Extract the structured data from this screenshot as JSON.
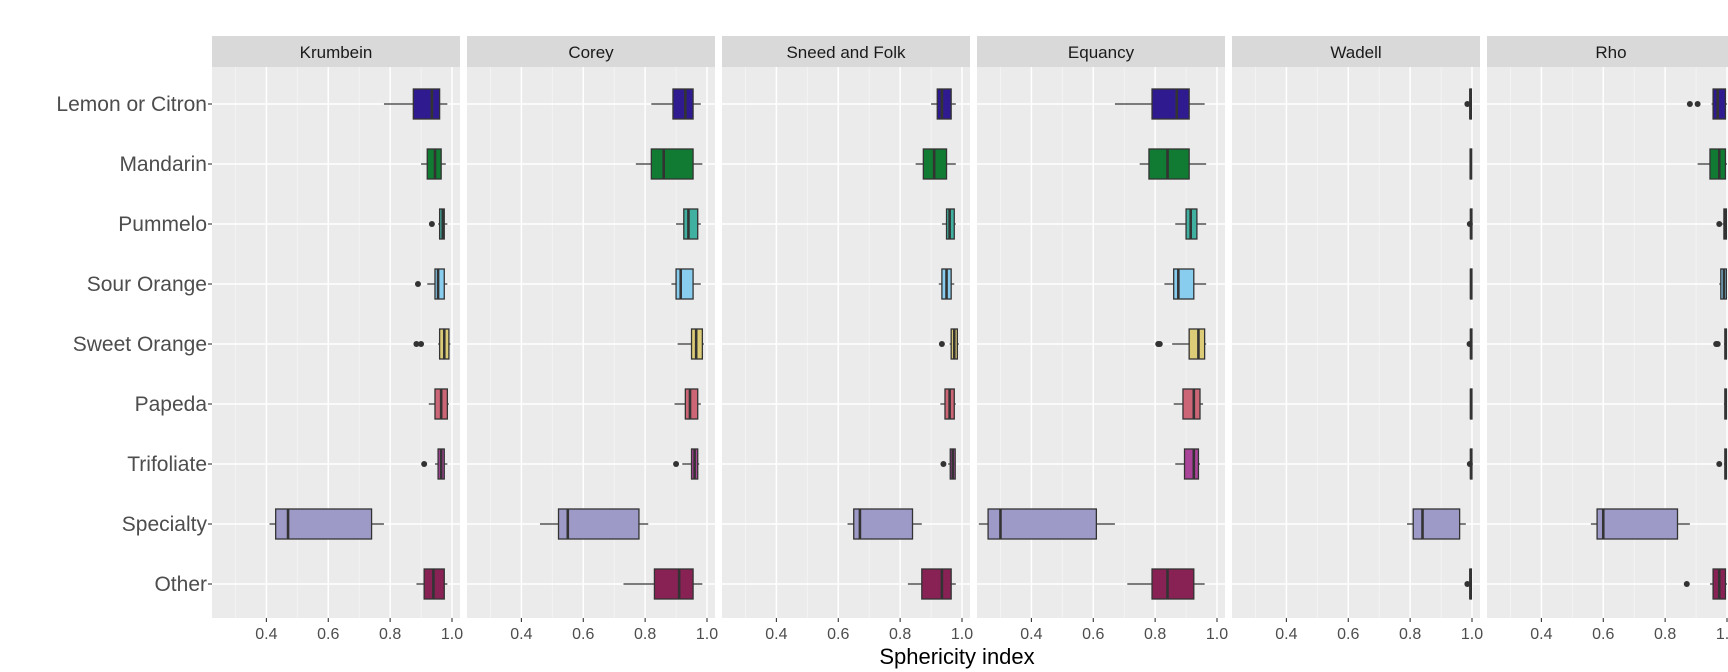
{
  "chart_data": {
    "type": "boxplot",
    "xlabel": "Sphericity index",
    "ylabel": "",
    "xlim": [
      0.25,
      1.0
    ],
    "x_ticks": [
      "0.4",
      "0.6",
      "0.8",
      "1.0"
    ],
    "x_tick_values": [
      0.4,
      0.6,
      0.8,
      1.0
    ],
    "grid": true,
    "legend": "none",
    "categories": [
      "Lemon or Citron",
      "Mandarin",
      "Pummelo",
      "Sour Orange",
      "Sweet Orange",
      "Papeda",
      "Trifoliate",
      "Specialty",
      "Other"
    ],
    "colors": {
      "Lemon or Citron": "#2f1b8f",
      "Mandarin": "#117a33",
      "Pummelo": "#40b0a0",
      "Sour Orange": "#88ccee",
      "Sweet Orange": "#ddcc77",
      "Papeda": "#cc6677",
      "Trifoliate": "#aa4499",
      "Specialty": "#9e9ac8",
      "Other": "#882255"
    },
    "panels": [
      {
        "name": "Krumbein",
        "boxes": [
          {
            "category": "Lemon or Citron",
            "whisker_low": 0.78,
            "q1": 0.875,
            "median": 0.935,
            "q3": 0.96,
            "whisker_high": 0.985,
            "outliers": []
          },
          {
            "category": "Mandarin",
            "whisker_low": 0.9,
            "q1": 0.92,
            "median": 0.945,
            "q3": 0.965,
            "whisker_high": 0.98,
            "outliers": []
          },
          {
            "category": "Pummelo",
            "whisker_low": 0.955,
            "q1": 0.96,
            "median": 0.97,
            "q3": 0.975,
            "whisker_high": 0.985,
            "outliers": [
              0.935
            ]
          },
          {
            "category": "Sour Orange",
            "whisker_low": 0.92,
            "q1": 0.945,
            "median": 0.955,
            "q3": 0.975,
            "whisker_high": 0.985,
            "outliers": [
              0.89
            ]
          },
          {
            "category": "Sweet Orange",
            "whisker_low": 0.955,
            "q1": 0.96,
            "median": 0.975,
            "q3": 0.99,
            "whisker_high": 0.995,
            "outliers": [
              0.885,
              0.9
            ]
          },
          {
            "category": "Papeda",
            "whisker_low": 0.925,
            "q1": 0.945,
            "median": 0.965,
            "q3": 0.985,
            "whisker_high": 0.99,
            "outliers": []
          },
          {
            "category": "Trifoliate",
            "whisker_low": 0.945,
            "q1": 0.955,
            "median": 0.965,
            "q3": 0.975,
            "whisker_high": 0.985,
            "outliers": [
              0.91
            ]
          },
          {
            "category": "Specialty",
            "whisker_low": 0.41,
            "q1": 0.43,
            "median": 0.47,
            "q3": 0.74,
            "whisker_high": 0.78,
            "outliers": []
          },
          {
            "category": "Other",
            "whisker_low": 0.885,
            "q1": 0.91,
            "median": 0.94,
            "q3": 0.975,
            "whisker_high": 0.985,
            "outliers": []
          }
        ]
      },
      {
        "name": "Corey",
        "boxes": [
          {
            "category": "Lemon or Citron",
            "whisker_low": 0.82,
            "q1": 0.89,
            "median": 0.93,
            "q3": 0.955,
            "whisker_high": 0.98,
            "outliers": []
          },
          {
            "category": "Mandarin",
            "whisker_low": 0.77,
            "q1": 0.82,
            "median": 0.86,
            "q3": 0.955,
            "whisker_high": 0.985,
            "outliers": []
          },
          {
            "category": "Pummelo",
            "whisker_low": 0.9,
            "q1": 0.925,
            "median": 0.94,
            "q3": 0.97,
            "whisker_high": 0.98,
            "outliers": []
          },
          {
            "category": "Sour Orange",
            "whisker_low": 0.885,
            "q1": 0.9,
            "median": 0.915,
            "q3": 0.955,
            "whisker_high": 0.98,
            "outliers": []
          },
          {
            "category": "Sweet Orange",
            "whisker_low": 0.905,
            "q1": 0.95,
            "median": 0.965,
            "q3": 0.985,
            "whisker_high": 0.99,
            "outliers": []
          },
          {
            "category": "Papeda",
            "whisker_low": 0.895,
            "q1": 0.93,
            "median": 0.945,
            "q3": 0.97,
            "whisker_high": 0.98,
            "outliers": []
          },
          {
            "category": "Trifoliate",
            "whisker_low": 0.92,
            "q1": 0.95,
            "median": 0.96,
            "q3": 0.97,
            "whisker_high": 0.975,
            "outliers": [
              0.9
            ]
          },
          {
            "category": "Specialty",
            "whisker_low": 0.46,
            "q1": 0.52,
            "median": 0.55,
            "q3": 0.78,
            "whisker_high": 0.81,
            "outliers": []
          },
          {
            "category": "Other",
            "whisker_low": 0.73,
            "q1": 0.83,
            "median": 0.91,
            "q3": 0.955,
            "whisker_high": 0.985,
            "outliers": []
          }
        ]
      },
      {
        "name": "Sneed and Folk",
        "boxes": [
          {
            "category": "Lemon or Citron",
            "whisker_low": 0.9,
            "q1": 0.92,
            "median": 0.935,
            "q3": 0.965,
            "whisker_high": 0.98,
            "outliers": []
          },
          {
            "category": "Mandarin",
            "whisker_low": 0.85,
            "q1": 0.875,
            "median": 0.91,
            "q3": 0.95,
            "whisker_high": 0.98,
            "outliers": []
          },
          {
            "category": "Pummelo",
            "whisker_low": 0.935,
            "q1": 0.95,
            "median": 0.96,
            "q3": 0.975,
            "whisker_high": 0.98,
            "outliers": []
          },
          {
            "category": "Sour Orange",
            "whisker_low": 0.925,
            "q1": 0.935,
            "median": 0.95,
            "q3": 0.965,
            "whisker_high": 0.975,
            "outliers": []
          },
          {
            "category": "Sweet Orange",
            "whisker_low": 0.96,
            "q1": 0.965,
            "median": 0.975,
            "q3": 0.985,
            "whisker_high": 0.99,
            "outliers": [
              0.935
            ]
          },
          {
            "category": "Papeda",
            "whisker_low": 0.93,
            "q1": 0.945,
            "median": 0.96,
            "q3": 0.975,
            "whisker_high": 0.98,
            "outliers": []
          },
          {
            "category": "Trifoliate",
            "whisker_low": 0.955,
            "q1": 0.962,
            "median": 0.97,
            "q3": 0.978,
            "whisker_high": 0.98,
            "outliers": [
              0.94
            ]
          },
          {
            "category": "Specialty",
            "whisker_low": 0.63,
            "q1": 0.65,
            "median": 0.67,
            "q3": 0.84,
            "whisker_high": 0.87,
            "outliers": []
          },
          {
            "category": "Other",
            "whisker_low": 0.825,
            "q1": 0.87,
            "median": 0.935,
            "q3": 0.965,
            "whisker_high": 0.98,
            "outliers": []
          }
        ]
      },
      {
        "name": "Equancy",
        "boxes": [
          {
            "category": "Lemon or Citron",
            "whisker_low": 0.67,
            "q1": 0.79,
            "median": 0.87,
            "q3": 0.91,
            "whisker_high": 0.96,
            "outliers": []
          },
          {
            "category": "Mandarin",
            "whisker_low": 0.75,
            "q1": 0.78,
            "median": 0.84,
            "q3": 0.91,
            "whisker_high": 0.965,
            "outliers": []
          },
          {
            "category": "Pummelo",
            "whisker_low": 0.865,
            "q1": 0.9,
            "median": 0.915,
            "q3": 0.935,
            "whisker_high": 0.965,
            "outliers": []
          },
          {
            "category": "Sour Orange",
            "whisker_low": 0.83,
            "q1": 0.86,
            "median": 0.875,
            "q3": 0.925,
            "whisker_high": 0.965,
            "outliers": []
          },
          {
            "category": "Sweet Orange",
            "whisker_low": 0.855,
            "q1": 0.91,
            "median": 0.94,
            "q3": 0.96,
            "whisker_high": 0.965,
            "outliers": [
              0.81,
              0.815
            ]
          },
          {
            "category": "Papeda",
            "whisker_low": 0.86,
            "q1": 0.89,
            "median": 0.925,
            "q3": 0.945,
            "whisker_high": 0.955,
            "outliers": []
          },
          {
            "category": "Trifoliate",
            "whisker_low": 0.865,
            "q1": 0.895,
            "median": 0.925,
            "q3": 0.94,
            "whisker_high": 0.945,
            "outliers": []
          },
          {
            "category": "Specialty",
            "whisker_low": 0.23,
            "q1": 0.26,
            "median": 0.3,
            "q3": 0.61,
            "whisker_high": 0.67,
            "outliers": []
          },
          {
            "category": "Other",
            "whisker_low": 0.71,
            "q1": 0.79,
            "median": 0.84,
            "q3": 0.925,
            "whisker_high": 0.96,
            "outliers": []
          }
        ]
      },
      {
        "name": "Wadell",
        "boxes": [
          {
            "category": "Lemon or Citron",
            "whisker_low": 0.99,
            "q1": 0.993,
            "median": 0.995,
            "q3": 0.998,
            "whisker_high": 1.0,
            "outliers": [
              0.985
            ]
          },
          {
            "category": "Mandarin",
            "whisker_low": 0.992,
            "q1": 0.994,
            "median": 0.996,
            "q3": 0.998,
            "whisker_high": 1.0,
            "outliers": []
          },
          {
            "category": "Pummelo",
            "whisker_low": 0.993,
            "q1": 0.995,
            "median": 0.997,
            "q3": 0.998,
            "whisker_high": 1.0,
            "outliers": [
              0.993
            ]
          },
          {
            "category": "Sour Orange",
            "whisker_low": 0.993,
            "q1": 0.995,
            "median": 0.997,
            "q3": 0.998,
            "whisker_high": 1.0,
            "outliers": []
          },
          {
            "category": "Sweet Orange",
            "whisker_low": 0.993,
            "q1": 0.995,
            "median": 0.997,
            "q3": 0.998,
            "whisker_high": 1.0,
            "outliers": [
              0.992
            ]
          },
          {
            "category": "Papeda",
            "whisker_low": 0.993,
            "q1": 0.995,
            "median": 0.997,
            "q3": 0.998,
            "whisker_high": 1.0,
            "outliers": []
          },
          {
            "category": "Trifoliate",
            "whisker_low": 0.993,
            "q1": 0.995,
            "median": 0.997,
            "q3": 0.998,
            "whisker_high": 1.0,
            "outliers": [
              0.993
            ]
          },
          {
            "category": "Specialty",
            "whisker_low": 0.79,
            "q1": 0.81,
            "median": 0.84,
            "q3": 0.96,
            "whisker_high": 0.98,
            "outliers": []
          },
          {
            "category": "Other",
            "whisker_low": 0.99,
            "q1": 0.993,
            "median": 0.995,
            "q3": 0.998,
            "whisker_high": 1.0,
            "outliers": [
              0.985
            ]
          }
        ]
      },
      {
        "name": "Rho",
        "boxes": [
          {
            "category": "Lemon or Citron",
            "whisker_low": 0.95,
            "q1": 0.955,
            "median": 0.97,
            "q3": 0.995,
            "whisker_high": 1.0,
            "outliers": [
              0.88,
              0.905
            ]
          },
          {
            "category": "Mandarin",
            "whisker_low": 0.905,
            "q1": 0.945,
            "median": 0.975,
            "q3": 0.995,
            "whisker_high": 1.0,
            "outliers": []
          },
          {
            "category": "Pummelo",
            "whisker_low": 0.985,
            "q1": 0.99,
            "median": 0.995,
            "q3": 0.998,
            "whisker_high": 1.0,
            "outliers": [
              0.975
            ]
          },
          {
            "category": "Sour Orange",
            "whisker_low": 0.975,
            "q1": 0.98,
            "median": 0.99,
            "q3": 0.998,
            "whisker_high": 1.0,
            "outliers": []
          },
          {
            "category": "Sweet Orange",
            "whisker_low": 0.99,
            "q1": 0.993,
            "median": 0.996,
            "q3": 0.998,
            "whisker_high": 1.0,
            "outliers": [
              0.965,
              0.97
            ]
          },
          {
            "category": "Papeda",
            "whisker_low": 0.99,
            "q1": 0.993,
            "median": 0.996,
            "q3": 0.998,
            "whisker_high": 1.0,
            "outliers": []
          },
          {
            "category": "Trifoliate",
            "whisker_low": 0.99,
            "q1": 0.993,
            "median": 0.996,
            "q3": 0.998,
            "whisker_high": 1.0,
            "outliers": [
              0.975
            ]
          },
          {
            "category": "Specialty",
            "whisker_low": 0.56,
            "q1": 0.58,
            "median": 0.6,
            "q3": 0.84,
            "whisker_high": 0.88,
            "outliers": []
          },
          {
            "category": "Other",
            "whisker_low": 0.945,
            "q1": 0.955,
            "median": 0.975,
            "q3": 0.995,
            "whisker_high": 1.0,
            "outliers": [
              0.87
            ]
          }
        ]
      }
    ]
  }
}
